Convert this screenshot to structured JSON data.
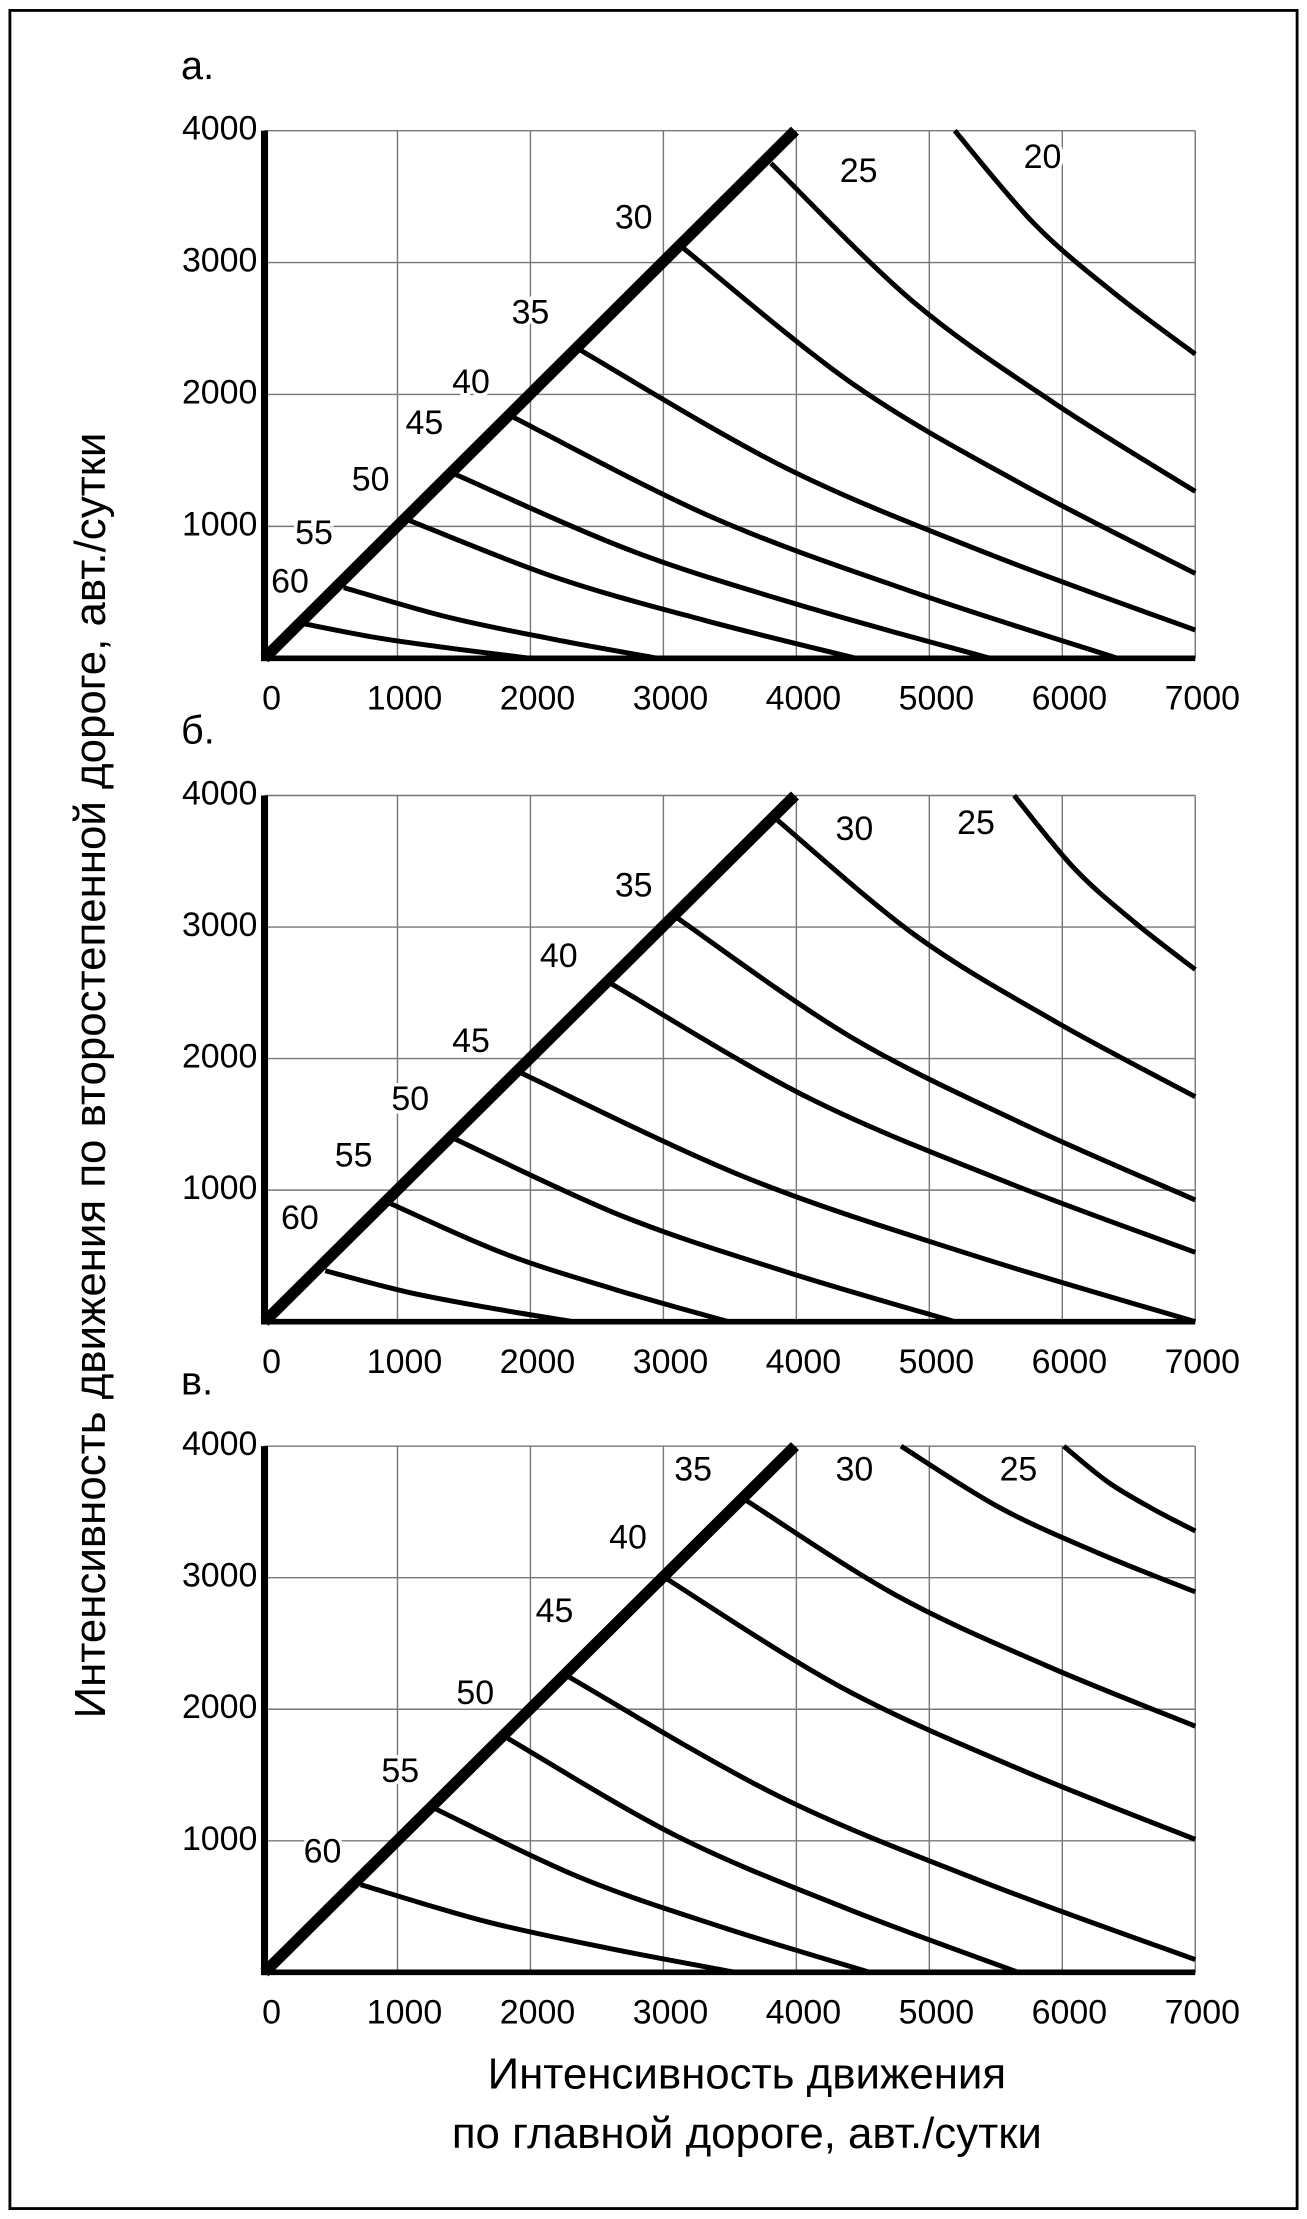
{
  "chart_data": [
    {
      "type": "line",
      "title": "а.",
      "ylabel": "Интенсивность движения по второстепенной дороге, авт./сутки",
      "xlim": [
        0,
        7000
      ],
      "ylim": [
        0,
        4000
      ],
      "xticks": [
        0,
        1000,
        2000,
        3000,
        4000,
        5000,
        6000,
        7000
      ],
      "yticks": [
        1000,
        2000,
        3000,
        4000
      ],
      "grid": true,
      "series": [
        {
          "name": "60",
          "color": "#000000",
          "x": [
            266,
            850,
            1430,
            2000
          ],
          "values": [
            268,
            155,
            72,
            0
          ]
        },
        {
          "name": "55",
          "color": "#000000",
          "x": [
            596,
            1383,
            2170,
            2957
          ],
          "values": [
            536,
            311,
            145,
            0
          ]
        },
        {
          "name": "50",
          "color": "#000000",
          "x": [
            1074,
            2198,
            3323,
            4447
          ],
          "values": [
            1051,
            610,
            284,
            0
          ]
        },
        {
          "name": "45",
          "color": "#000000",
          "x": [
            1436,
            2776,
            4117,
            5457
          ],
          "values": [
            1394,
            809,
            376,
            0
          ]
        },
        {
          "name": "40",
          "color": "#000000",
          "x": [
            1840,
            3365,
            4890,
            6415
          ],
          "values": [
            1844,
            1070,
            498,
            0
          ]
        },
        {
          "name": "35",
          "color": "#000000",
          "x": [
            2372,
            3915,
            5457,
            7000
          ],
          "values": [
            2338,
            1446,
            787,
            214
          ]
        },
        {
          "name": "30",
          "color": "#000000",
          "x": [
            3149,
            4433,
            5716,
            7000
          ],
          "values": [
            3110,
            2074,
            1309,
            643
          ]
        },
        {
          "name": "25",
          "color": "#000000",
          "x": [
            3809,
            4873,
            5936,
            7000
          ],
          "values": [
            3753,
            2708,
            1937,
            1265
          ]
        },
        {
          "name": "20",
          "color": "#000000",
          "x": [
            5191,
            5794,
            6397,
            7000
          ],
          "values": [
            4000,
            3289,
            2763,
            2306
          ]
        }
      ]
    },
    {
      "type": "line",
      "title": "б.",
      "xlim": [
        0,
        7000
      ],
      "ylim": [
        0,
        4000
      ],
      "xticks": [
        0,
        1000,
        2000,
        3000,
        4000,
        5000,
        6000,
        7000
      ],
      "yticks": [
        1000,
        2000,
        3000,
        4000
      ],
      "grid": true,
      "series": [
        {
          "name": "60",
          "color": "#000000",
          "x": [
            457,
            1078,
            1698,
            2319
          ],
          "values": [
            387,
            224,
            104,
            0
          ]
        },
        {
          "name": "55",
          "color": "#000000",
          "x": [
            936,
            1787,
            2638,
            3489
          ],
          "values": [
            903,
            524,
            244,
            0
          ]
        },
        {
          "name": "50",
          "color": "#000000",
          "x": [
            1436,
            2688,
            3939,
            5191
          ],
          "values": [
            1387,
            804,
            374,
            0
          ]
        },
        {
          "name": "45",
          "color": "#000000",
          "x": [
            1926,
            3617,
            5309,
            7000
          ],
          "values": [
            1892,
            1097,
            511,
            0
          ]
        },
        {
          "name": "40",
          "color": "#000000",
          "x": [
            2606,
            4071,
            5535,
            7000
          ],
          "values": [
            2570,
            1712,
            1079,
            527
          ]
        },
        {
          "name": "35",
          "color": "#000000",
          "x": [
            3096,
            4397,
            5699,
            7000
          ],
          "values": [
            3075,
            2172,
            1506,
            925
          ]
        },
        {
          "name": "30",
          "color": "#000000",
          "x": [
            3840,
            4893,
            5947,
            7000
          ],
          "values": [
            3828,
            2938,
            2282,
            1710
          ]
        },
        {
          "name": "25",
          "color": "#000000",
          "x": [
            5638,
            6092,
            6546,
            7000
          ],
          "values": [
            4000,
            3444,
            3034,
            2677
          ]
        }
      ]
    },
    {
      "type": "line",
      "title": "в.",
      "xlabel": [
        "Интенсивность движения",
        "по главной дороге, авт./сутки"
      ],
      "xlim": [
        0,
        7000
      ],
      "ylim": [
        0,
        4000
      ],
      "xticks": [
        0,
        1000,
        2000,
        3000,
        4000,
        5000,
        6000,
        7000
      ],
      "yticks": [
        1000,
        2000,
        3000,
        4000
      ],
      "grid": true,
      "series": [
        {
          "name": "60",
          "color": "#000000",
          "x": [
            723,
            1663,
            2603,
            3543
          ],
          "values": [
            667,
            387,
            180,
            0
          ]
        },
        {
          "name": "55",
          "color": "#000000",
          "x": [
            1277,
            2369,
            3461,
            4553
          ],
          "values": [
            1247,
            723,
            337,
            0
          ]
        },
        {
          "name": "50",
          "color": "#000000",
          "x": [
            1819,
            3103,
            4386,
            5670
          ],
          "values": [
            1785,
            1035,
            482,
            0
          ]
        },
        {
          "name": "45",
          "color": "#000000",
          "x": [
            2287,
            3858,
            5429,
            7000
          ],
          "values": [
            2247,
            1344,
            678,
            97
          ]
        },
        {
          "name": "40",
          "color": "#000000",
          "x": [
            3011,
            4341,
            5670,
            7000
          ],
          "values": [
            3000,
            2165,
            1548,
            1011
          ]
        },
        {
          "name": "35",
          "color": "#000000",
          "x": [
            3617,
            4745,
            5872,
            7000
          ],
          "values": [
            3591,
            2869,
            2335,
            1871
          ]
        },
        {
          "name": "30",
          "color": "#000000",
          "x": [
            4787,
            5525,
            6262,
            7000
          ],
          "values": [
            4000,
            3535,
            3191,
            2892
          ]
        },
        {
          "name": "25",
          "color": "#000000",
          "x": [
            6011,
            6341,
            6670,
            7000
          ],
          "values": [
            4000,
            3729,
            3529,
            3355
          ]
        }
      ]
    }
  ]
}
